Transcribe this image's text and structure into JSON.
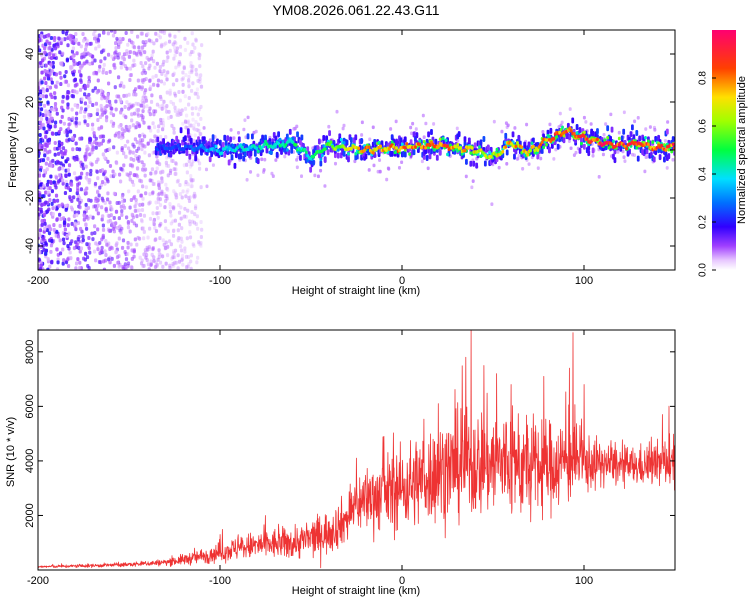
{
  "title": "YM08.2026.061.22.43.G11",
  "chart_data": [
    {
      "type": "heatmap",
      "panel": "spectrogram",
      "xlabel": "Height of straight line (km)",
      "ylabel": "Frequency (Hz)",
      "xlim": [
        -200,
        150
      ],
      "ylim": [
        -50,
        50
      ],
      "xticks": [
        -200,
        -100,
        0,
        100
      ],
      "yticks": [
        -40,
        -20,
        0,
        20,
        40
      ],
      "grid": false,
      "colorbar": {
        "label": "Normalized spectral amplitude",
        "range": [
          0,
          1
        ],
        "ticks": [
          0.0,
          0.2,
          0.4,
          0.6,
          0.8
        ],
        "tick_labels": [
          "0.0",
          "0.2",
          "0.4",
          "0.6",
          "0.8"
        ],
        "colors": [
          "#ffffff",
          "#d9b3ff",
          "#8000ff",
          "#0000ff",
          "#00c8ff",
          "#00ff00",
          "#ffff00",
          "#ff8000",
          "#ff0000",
          "#ff0080"
        ]
      },
      "ridge": {
        "description_points_x": [
          -120,
          -100,
          -80,
          -60,
          -50,
          -40,
          -20,
          0,
          20,
          40,
          50,
          60,
          70,
          80,
          90,
          100,
          110,
          120,
          130,
          140,
          150
        ],
        "frequency_hz": [
          1,
          0,
          1,
          3,
          -3,
          2,
          0,
          1,
          2,
          0,
          -3,
          3,
          -1,
          4,
          8,
          5,
          3,
          2,
          3,
          1,
          1
        ],
        "peak_amplitude": [
          0.25,
          0.4,
          0.45,
          0.5,
          0.45,
          0.6,
          0.8,
          0.85,
          0.9,
          0.75,
          0.7,
          0.8,
          0.75,
          0.85,
          0.9,
          0.95,
          0.95,
          0.9,
          0.95,
          0.9,
          0.9
        ]
      },
      "noise_region_x": [
        -200,
        -110
      ]
    },
    {
      "type": "line",
      "panel": "snr",
      "xlabel": "Height of straight line (km)",
      "ylabel": "SNR (10 * v/v)",
      "xlim": [
        -200,
        150
      ],
      "ylim": [
        0,
        8800
      ],
      "xticks": [
        -200,
        -100,
        0,
        100
      ],
      "yticks": [
        2000,
        4000,
        6000,
        8000
      ],
      "grid": false,
      "color": "#ee3333",
      "series": [
        {
          "name": "SNR",
          "x": [
            -200,
            -175,
            -150,
            -130,
            -120,
            -110,
            -100,
            -90,
            -80,
            -70,
            -60,
            -50,
            -40,
            -30,
            -25,
            -20,
            -10,
            0,
            10,
            20,
            30,
            40,
            50,
            60,
            70,
            80,
            90,
            100,
            110,
            120,
            130,
            140,
            150
          ],
          "mean": [
            120,
            150,
            200,
            280,
            380,
            500,
            650,
            800,
            900,
            950,
            1000,
            1150,
            1400,
            1900,
            2400,
            2600,
            2800,
            3000,
            3300,
            3600,
            3800,
            3900,
            3950,
            3900,
            3700,
            3800,
            4000,
            3900,
            3900,
            3800,
            3800,
            3900,
            4000
          ],
          "spread": [
            60,
            80,
            100,
            150,
            250,
            350,
            450,
            550,
            650,
            700,
            750,
            900,
            1000,
            1100,
            1300,
            1500,
            1700,
            1900,
            2100,
            2300,
            2400,
            2500,
            2600,
            2500,
            2300,
            2100,
            2000,
            1400,
            1000,
            900,
            900,
            1000,
            1200
          ],
          "peaks": [
            [
              -100,
              1300
            ],
            [
              -75,
              2000
            ],
            [
              -25,
              4100
            ],
            [
              -10,
              4900
            ],
            [
              20,
              6100
            ],
            [
              35,
              7800
            ],
            [
              38,
              8800
            ],
            [
              45,
              7500
            ],
            [
              52,
              7200
            ],
            [
              60,
              6800
            ],
            [
              78,
              7100
            ],
            [
              92,
              7400
            ],
            [
              94,
              8700
            ],
            [
              100,
              6800
            ],
            [
              143,
              5700
            ],
            [
              147,
              5000
            ]
          ]
        }
      ]
    }
  ]
}
